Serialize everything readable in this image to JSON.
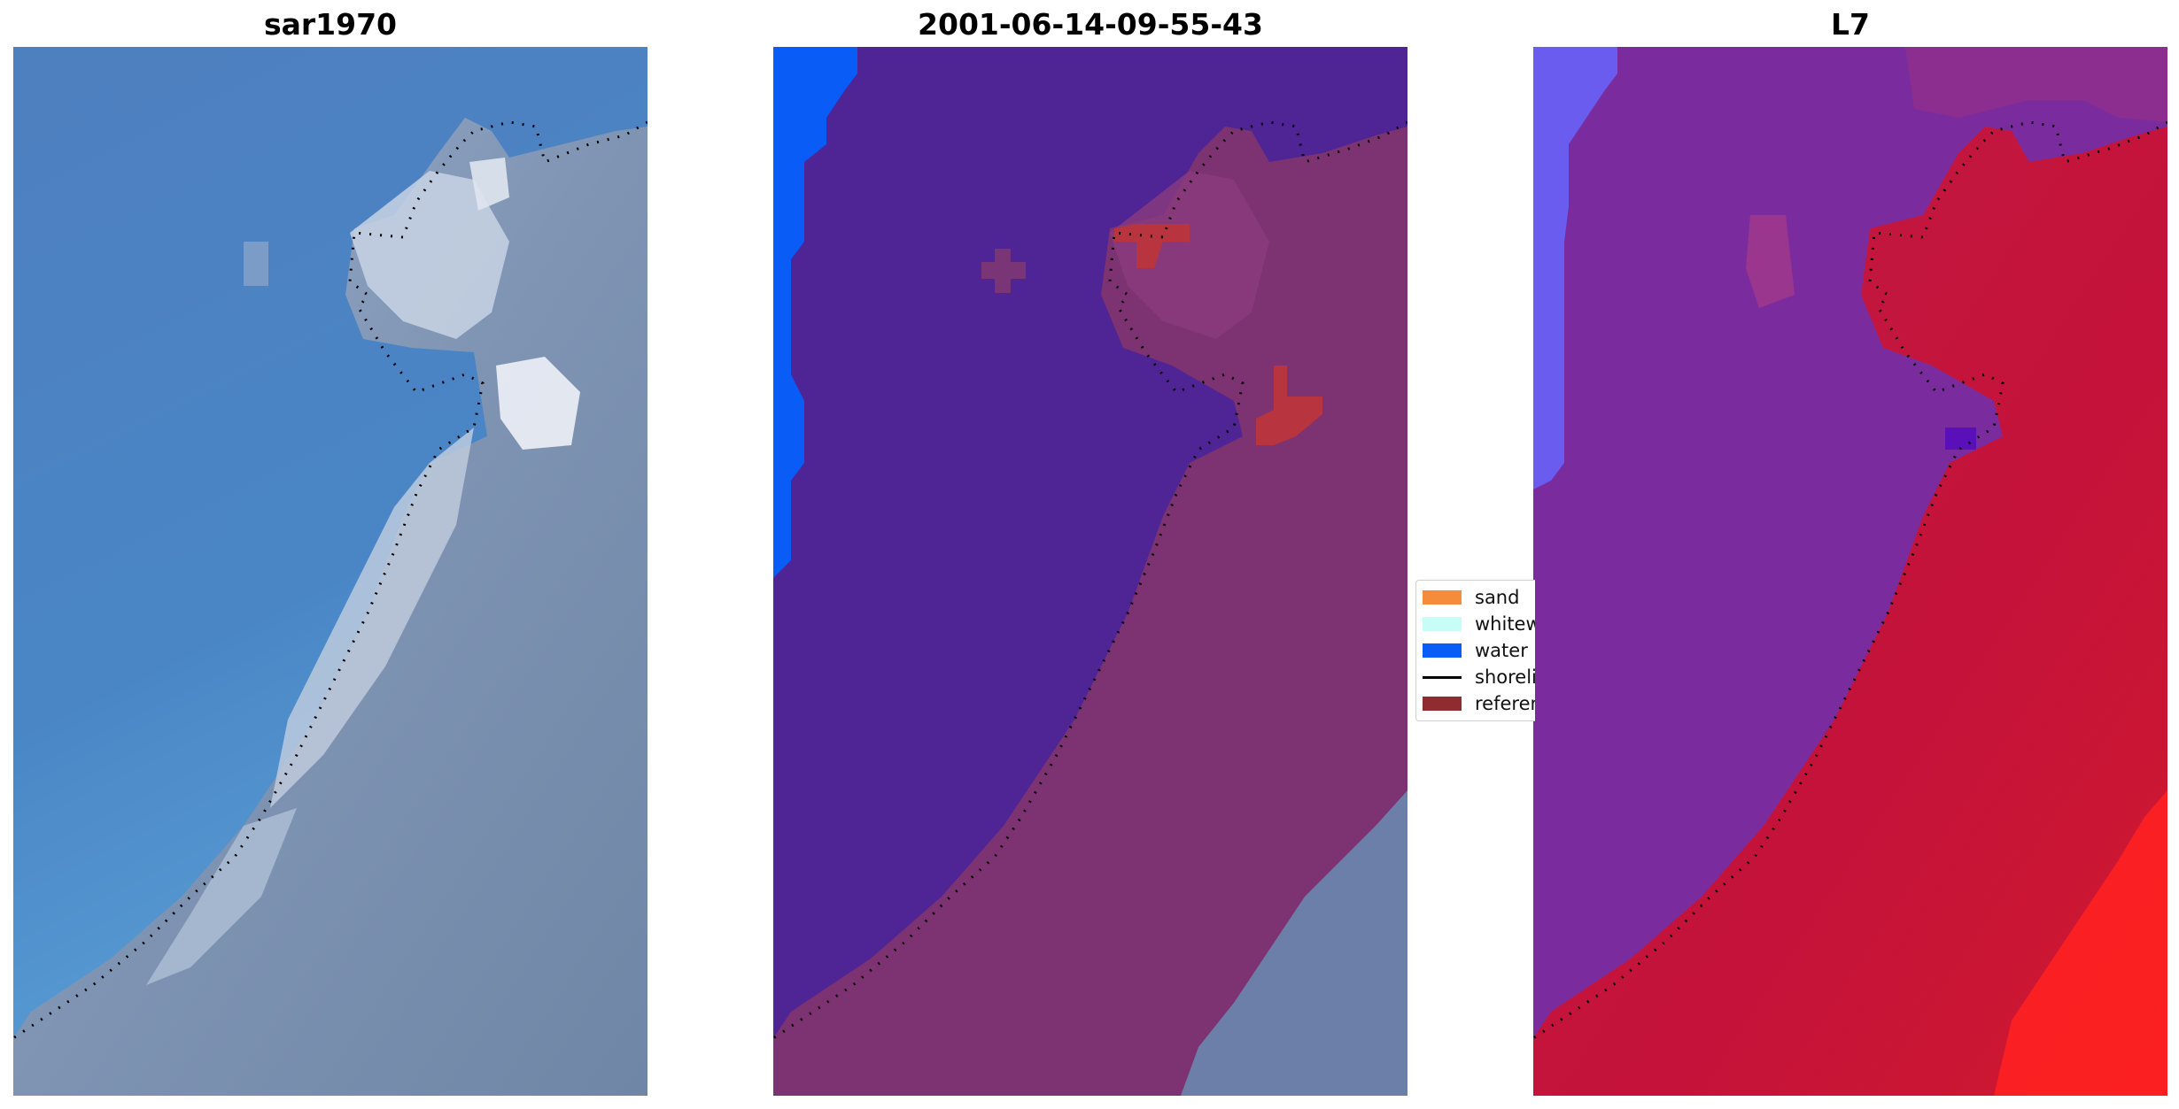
{
  "panels": [
    {
      "title": "sar1970"
    },
    {
      "title": "2001-06-14-09-55-43"
    },
    {
      "title": "L7"
    }
  ],
  "legend": {
    "items": [
      {
        "label": "sand",
        "kind": "patch",
        "color": "#f58c3c"
      },
      {
        "label": "whitewater",
        "kind": "patch",
        "color": "#c8fcf6"
      },
      {
        "label": "water",
        "kind": "patch",
        "color": "#0a5cf7"
      },
      {
        "label": "shoreline",
        "kind": "line",
        "color": "#000000"
      },
      {
        "label": "reference shoreline",
        "kind": "patch",
        "color": "#8f2c30"
      }
    ]
  },
  "colors": {
    "rgb_water": "#4a83c4",
    "rgb_land": "#7f95b3",
    "class_water": "#4f2495",
    "class_land": "#7d2f6b",
    "class_blue": "#0a5cf7",
    "class_reference": "#b8353f",
    "false_color_water": "#7a2a9c",
    "false_color_land": "#c01a3c",
    "false_color_bright": "#ff2222"
  }
}
